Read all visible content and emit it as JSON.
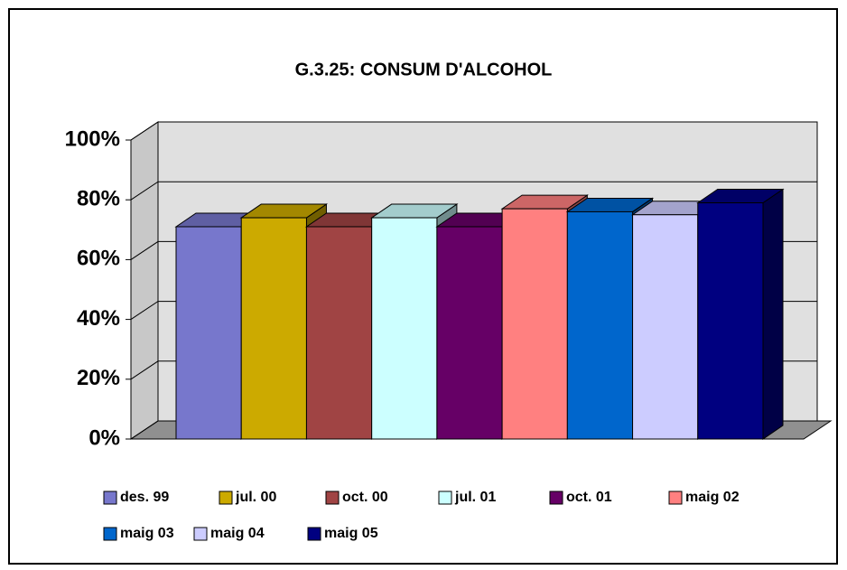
{
  "chart_data": {
    "type": "bar3d",
    "title": "G.3.25: CONSUM D'ALCOHOL",
    "series": [
      {
        "name": "des. 99",
        "color": "#7777cc",
        "values": [
          71
        ]
      },
      {
        "name": "jul. 00",
        "color": "#ccaa00",
        "values": [
          74
        ]
      },
      {
        "name": "oct. 00",
        "color": "#a04444",
        "values": [
          71
        ]
      },
      {
        "name": "jul. 01",
        "color": "#ccffff",
        "values": [
          74
        ]
      },
      {
        "name": "oct. 01",
        "color": "#660066",
        "values": [
          71
        ]
      },
      {
        "name": "maig 02",
        "color": "#ff8080",
        "values": [
          77
        ]
      },
      {
        "name": "maig 03",
        "color": "#0066cc",
        "values": [
          76
        ]
      },
      {
        "name": "maig 04",
        "color": "#ccccff",
        "values": [
          75
        ]
      },
      {
        "name": "maig 05",
        "color": "#000080",
        "values": [
          79
        ]
      }
    ],
    "ylim": [
      0,
      100
    ],
    "yticks": [
      {
        "value": 0,
        "label": "0%"
      },
      {
        "value": 20,
        "label": "20%"
      },
      {
        "value": 40,
        "label": "40%"
      },
      {
        "value": 60,
        "label": "60%"
      },
      {
        "value": 80,
        "label": "80%"
      },
      {
        "value": 100,
        "label": "100%"
      }
    ],
    "grid": true,
    "legend": "bottom"
  }
}
